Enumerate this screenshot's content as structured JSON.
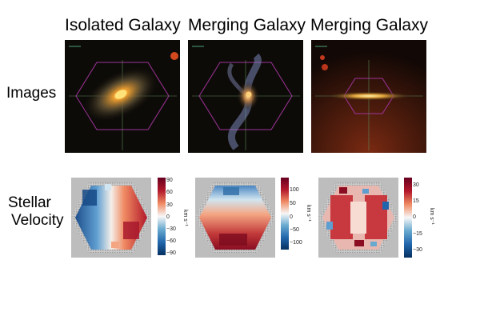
{
  "columns": [
    {
      "title": "Isolated Galaxy"
    },
    {
      "title": "Merging Galaxy"
    },
    {
      "title": "Merging Galaxy"
    }
  ],
  "rows": {
    "images_label": "Images",
    "velocity_label_line1": "Stellar",
    "velocity_label_line2": "Velocity"
  },
  "colorbars": [
    {
      "ticks": [
        "90",
        "60",
        "30",
        "0",
        "−30",
        "−60",
        "−90"
      ],
      "unit": "km s⁻¹",
      "min": -100,
      "max": 100
    },
    {
      "ticks": [
        "100",
        "50",
        "0",
        "−50",
        "−100"
      ],
      "unit": "km s⁻¹",
      "min": -120,
      "max": 120
    },
    {
      "ticks": [
        "30",
        "15",
        "0",
        "−15",
        "−30"
      ],
      "unit": "km s⁻¹",
      "min": -35,
      "max": 35
    }
  ],
  "colors": {
    "red": "#b2182b",
    "blue": "#2166ac",
    "mask_gray": "#bdbdbd",
    "hexagon": "#a0339a",
    "crosshair": "#5d8a5a"
  }
}
